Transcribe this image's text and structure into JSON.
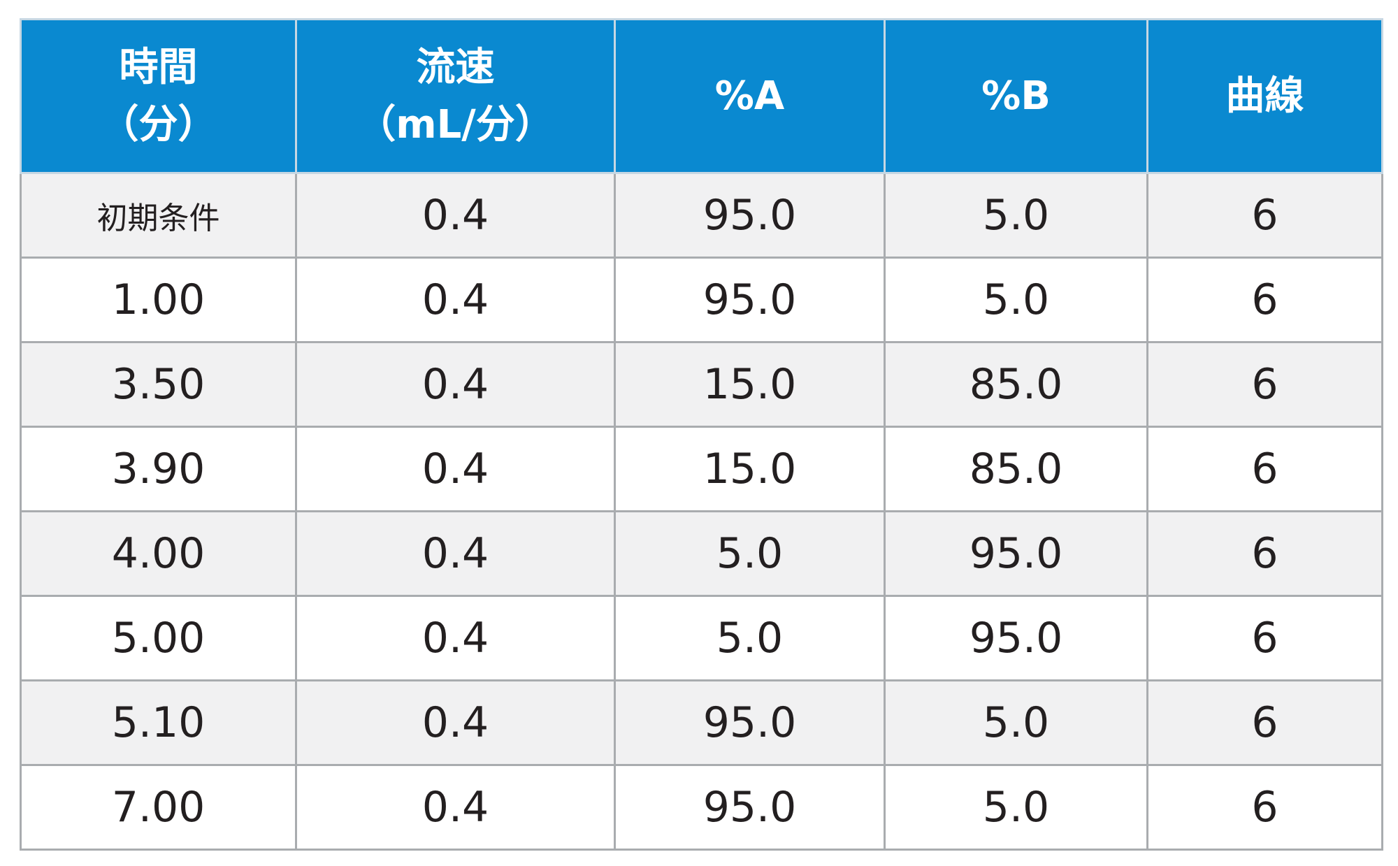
{
  "table": {
    "headers": [
      {
        "line1": "時間",
        "line2": "（分）"
      },
      {
        "line1": "流速",
        "line2": "（mL/分）"
      },
      {
        "line1": "%A",
        "line2": ""
      },
      {
        "line1": "%B",
        "line2": ""
      },
      {
        "line1": "曲線",
        "line2": ""
      }
    ],
    "rows": [
      [
        "初期条件",
        "0.4",
        "95.0",
        "5.0",
        "6"
      ],
      [
        "1.00",
        "0.4",
        "95.0",
        "5.0",
        "6"
      ],
      [
        "3.50",
        "0.4",
        "15.0",
        "85.0",
        "6"
      ],
      [
        "3.90",
        "0.4",
        "15.0",
        "85.0",
        "6"
      ],
      [
        "4.00",
        "0.4",
        "5.0",
        "95.0",
        "6"
      ],
      [
        "5.00",
        "0.4",
        "5.0",
        "95.0",
        "6"
      ],
      [
        "5.10",
        "0.4",
        "95.0",
        "5.0",
        "6"
      ],
      [
        "7.00",
        "0.4",
        "95.0",
        "5.0",
        "6"
      ]
    ]
  },
  "colors": {
    "header_bg": "#0a89d0",
    "header_text": "#ffffff",
    "row_shaded": "#f1f1f2",
    "row_plain": "#ffffff",
    "grid": "#a9acaf",
    "body_text": "#231f20"
  }
}
